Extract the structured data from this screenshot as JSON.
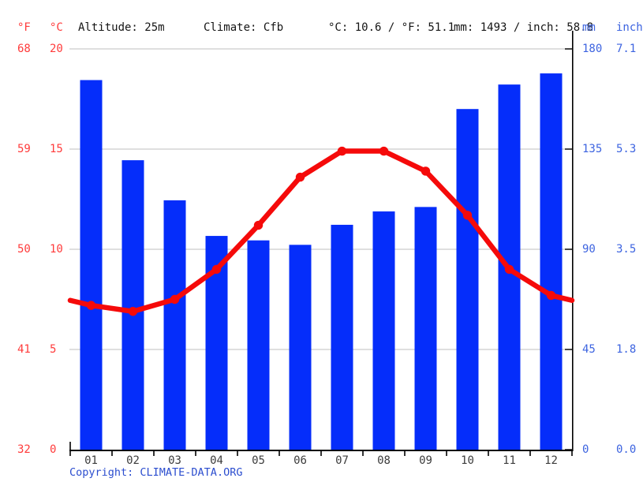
{
  "header": {
    "fahrenheit_symbol": "°F",
    "celsius_symbol": "°C",
    "altitude": "Altitude: 25m",
    "climate": "Climate: Cfb",
    "temperature_summary": "°C: 10.6 / °F: 51.1",
    "precipitation_summary": "mm: 1493 / inch: 58.8",
    "mm_symbol": "mm",
    "inch_symbol": "inch"
  },
  "footer": {
    "copyright_label": "Copyright: ",
    "site_link": "CLIMATE-DATA.ORG"
  },
  "colors": {
    "bar": "#052dfa",
    "line": "#f50a0a",
    "temp_axis_text": "#ff3b3b",
    "precip_axis_text": "#3d64e0",
    "grid": "#cccccc",
    "axis": "#000000",
    "month_text": "#3c3c3c",
    "copyright_text": "#2c4ecf"
  },
  "chart_data": {
    "type": "bar",
    "title": "",
    "categories": [
      "01",
      "02",
      "03",
      "04",
      "05",
      "06",
      "07",
      "08",
      "09",
      "10",
      "11",
      "12"
    ],
    "series": [
      {
        "name": "precipitation_mm",
        "type": "bar",
        "values": [
          166,
          130,
          112,
          96,
          94,
          92,
          101,
          107,
          109,
          153,
          164,
          169
        ]
      },
      {
        "name": "temperature_c",
        "type": "line",
        "values": [
          7.2,
          6.9,
          7.5,
          9.0,
          11.2,
          13.6,
          14.9,
          14.9,
          13.9,
          11.7,
          9.0,
          7.7
        ]
      }
    ],
    "left_axis": {
      "f_ticks": [
        "68",
        "59",
        "50",
        "41",
        "32"
      ],
      "c_ticks": [
        "20",
        "15",
        "10",
        "5",
        "0"
      ],
      "c_range": [
        0,
        20
      ]
    },
    "right_axis": {
      "mm_ticks": [
        "180",
        "135",
        "90",
        "45",
        "0"
      ],
      "inch_ticks": [
        "7.1",
        "5.3",
        "3.5",
        "1.8",
        "0.0"
      ],
      "mm_range": [
        0,
        180
      ]
    },
    "grid": true,
    "legend": "none"
  }
}
